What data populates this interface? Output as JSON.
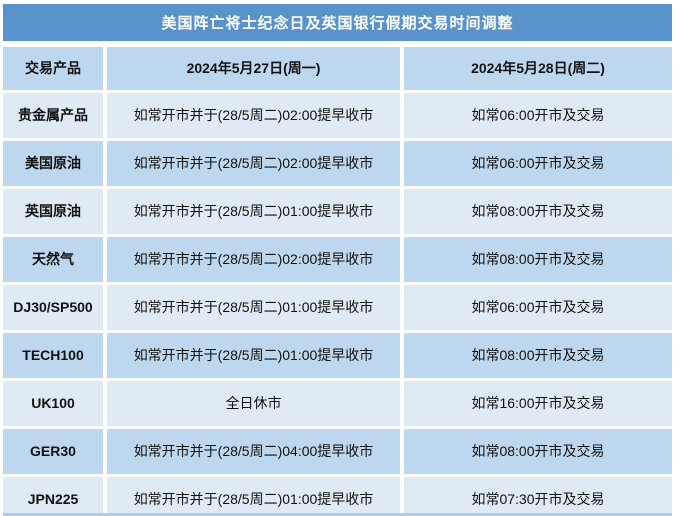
{
  "title": "美国阵亡将士纪念日及英国银行假期交易时间调整",
  "columns": {
    "product": "交易产品",
    "monday": "2024年5月27日(周一)",
    "tuesday": "2024年5月28日(周二)"
  },
  "rows": [
    {
      "product": "贵金属产品",
      "monday": "如常开市并于(28/5周二)02:00提早收市",
      "tuesday": "如常06:00开市及交易"
    },
    {
      "product": "美国原油",
      "monday": "如常开市并于(28/5周二)02:00提早收市",
      "tuesday": "如常06:00开市及交易"
    },
    {
      "product": "英国原油",
      "monday": "如常开市并于(28/5周二)01:00提早收市",
      "tuesday": "如常08:00开市及交易"
    },
    {
      "product": "天然气",
      "monday": "如常开市并于(28/5周二)02:00提早收市",
      "tuesday": "如常08:00开市及交易"
    },
    {
      "product": "DJ30/SP500",
      "monday": "如常开市并于(28/5周二)01:00提早收市",
      "tuesday": "如常06:00开市及交易"
    },
    {
      "product": "TECH100",
      "monday": "如常开市并于(28/5周二)01:00提早收市",
      "tuesday": "如常08:00开市及交易"
    },
    {
      "product": "UK100",
      "monday": "全日休市",
      "tuesday": "如常16:00开市及交易"
    },
    {
      "product": "GER30",
      "monday": "如常开市并于(28/5周二)04:00提早收市",
      "tuesday": "如常08:00开市及交易"
    },
    {
      "product": "JPN225",
      "monday": "如常开市并于(28/5周二)01:00提早收市",
      "tuesday": "如常07:30开市及交易"
    }
  ],
  "colors": {
    "title_bar": "#5a93cc",
    "title_text": "#ffffff",
    "row_blue": "#bdd7ee",
    "row_pale": "#dfeaf4",
    "body_text": "#111111",
    "background": "#ffffff"
  }
}
